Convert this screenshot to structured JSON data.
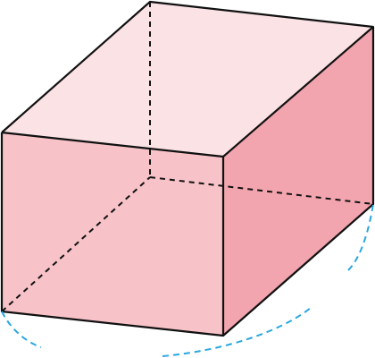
{
  "figure": {
    "colors": {
      "front_face": "#f7c3c8",
      "right_face": "#f2a5ae",
      "top_face": "#fbe2e5",
      "edge": "#111111",
      "hidden_edge": "#111111",
      "arc": "#2aa7e0",
      "background": "#ffffff"
    }
  }
}
